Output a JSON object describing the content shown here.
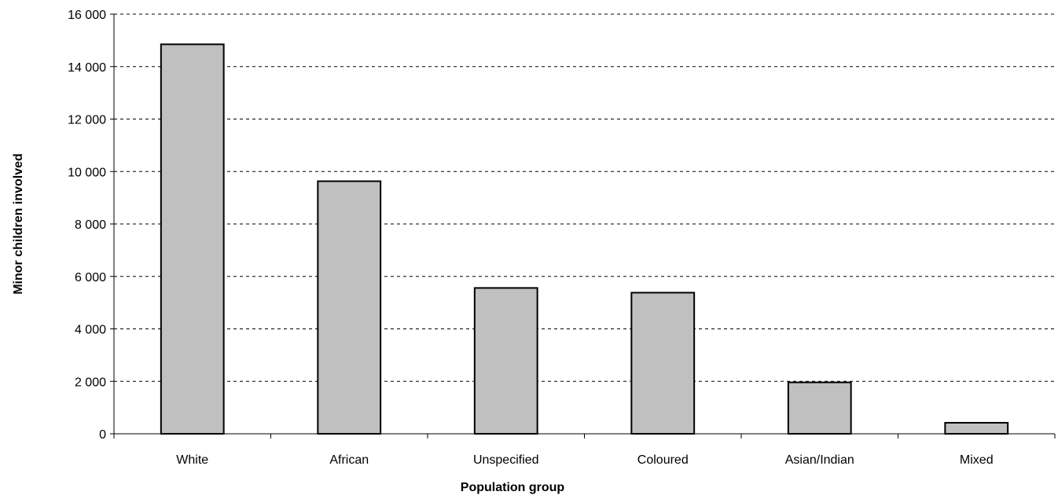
{
  "chart_data": {
    "type": "bar",
    "title": "",
    "xlabel": "Population group",
    "ylabel": "Minor children involved",
    "categories": [
      "White",
      "African",
      "Unspecified",
      "Coloured",
      "Asian/Indian",
      "Mixed"
    ],
    "values": [
      14850,
      9630,
      5560,
      5380,
      1960,
      420
    ],
    "ylim": [
      0,
      16000
    ],
    "yticks": [
      0,
      2000,
      4000,
      6000,
      8000,
      10000,
      12000,
      14000,
      16000
    ],
    "ytick_labels": [
      "0",
      "2 000",
      "4 000",
      "6 000",
      "8 000",
      "10 000",
      "12 000",
      "14 000",
      "16 000"
    ],
    "grid": true,
    "legend": "none",
    "colors": {
      "bar_fill": "#c0c0c0",
      "bar_stroke": "#000000",
      "grid": "#000000"
    }
  }
}
